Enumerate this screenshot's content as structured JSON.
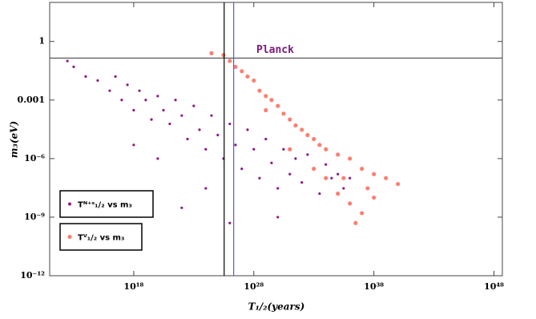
{
  "chart_data": {
    "type": "scatter",
    "xlabel": "T₁/₂(years)",
    "ylabel": "m₃(eV)",
    "xlog": true,
    "ylog": true,
    "xlim": [
      100000000000.0,
      5e+48
    ],
    "ylim": [
      1e-12,
      100
    ],
    "xticks": [
      {
        "value": 1e+18,
        "label": "10¹⁸"
      },
      {
        "value": 1e+28,
        "label": "10²⁸"
      },
      {
        "value": 1e+38,
        "label": "10³⁸"
      },
      {
        "value": 1e+48,
        "label": "10⁴⁸"
      }
    ],
    "yticks": [
      1,
      0.001,
      {
        "value": 1e-06,
        "label": "10⁻⁶"
      },
      {
        "value": 1e-09,
        "label": "10⁻⁹"
      },
      {
        "value": 1e-12,
        "label": "10⁻¹²"
      }
    ],
    "hlines": [
      {
        "value": 0.14,
        "color": "#555555",
        "label": "Planck",
        "label_color": "#7a1a78"
      }
    ],
    "vlines": [
      {
        "value": 3.4e+25,
        "color": "#000000"
      },
      {
        "value": 2.1e+26,
        "color": "#4a5bff"
      }
    ],
    "series": [
      {
        "name": "Tᴺ⁺ˢ₁/₂ vs m₃",
        "color": "#8e1a7e",
        "x": [
          3000000000000.0,
          10000000000000.0,
          100000000000000.0,
          1000000000000000.0,
          1e+16,
          3e+16,
          1e+17,
          3e+17,
          1e+18,
          3e+18,
          1e+19,
          3e+19,
          1e+20,
          3e+20,
          1e+21,
          3e+21,
          1e+22,
          3e+22,
          1e+23,
          3e+23,
          1e+24,
          3e+24,
          1e+25,
          3e+25,
          1e+26,
          3e+26,
          1e+27,
          3e+27,
          1e+28,
          3e+28,
          1e+29,
          3e+29,
          1e+30,
          3e+30,
          1e+31,
          3e+31,
          1e+32,
          3e+32,
          1e+33,
          3e+33,
          1e+34,
          3e+34,
          1e+35,
          3e+35,
          1e+36,
          1e+22,
          1e+26,
          1e+24,
          1e+20,
          1e+18,
          1e+30
        ],
        "values": [
          0.1,
          0.05,
          0.016,
          0.01,
          0.003,
          0.016,
          0.001,
          0.006,
          0.0003,
          0.003,
          0.001,
          0.0001,
          0.0016,
          0.0003,
          6e-05,
          0.001,
          0.00016,
          1e-05,
          0.0005,
          3e-05,
          3e-06,
          0.00016,
          1.6e-05,
          1e-06,
          6e-05,
          5e-06,
          3e-07,
          3e-05,
          3e-06,
          1e-07,
          1e-05,
          6e-07,
          3e-08,
          3e-06,
          1.6e-07,
          1e-06,
          6e-08,
          1.6e-06,
          3e-07,
          1.6e-08,
          5e-07,
          1e-07,
          1.6e-07,
          3e-08,
          1e-07,
          3e-09,
          5e-10,
          3e-08,
          1e-06,
          5e-06,
          1e-09
        ]
      },
      {
        "name": "Tⱽ₁/₂ vs m₃",
        "color": "#fa8072",
        "x": [
          3e+24,
          3e+25,
          1e+26,
          3e+26,
          1e+27,
          3e+27,
          1e+28,
          3e+28,
          1e+29,
          3e+29,
          1e+30,
          3e+30,
          1e+31,
          3e+31,
          1e+32,
          3e+32,
          1e+33,
          3e+33,
          1e+34,
          1e+35,
          1e+36,
          1e+37,
          1e+38,
          1e+39,
          1e+40,
          1e+34,
          1e+35,
          1e+36,
          1e+37,
          3e+36,
          1e+33,
          1e+31,
          1e+29,
          3e+35,
          3e+37,
          1e+38
        ],
        "values": [
          0.25,
          0.2,
          0.1,
          0.05,
          0.03,
          0.016,
          0.01,
          0.003,
          0.0016,
          0.001,
          0.0005,
          0.0002,
          0.0001,
          5e-05,
          3e-05,
          1.6e-05,
          1e-05,
          5e-06,
          3e-06,
          1.6e-06,
          1e-06,
          3e-07,
          1.6e-07,
          1e-07,
          5e-08,
          1e-07,
          1.6e-08,
          5e-09,
          1.6e-09,
          5e-10,
          3e-07,
          3e-06,
          0.0003,
          1e-07,
          3e-08,
          1e-08
        ]
      }
    ]
  }
}
